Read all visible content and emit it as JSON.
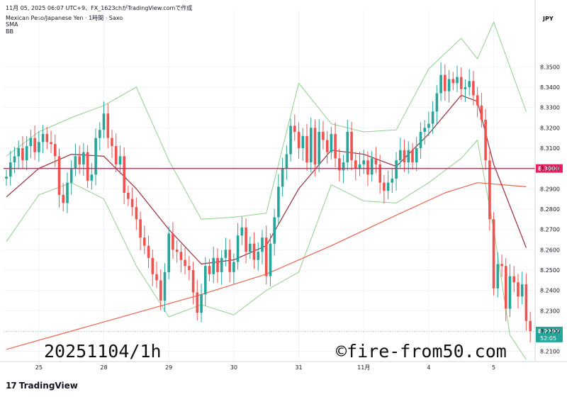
{
  "header": {
    "line1": "11月 05, 2025 06:07 UTC+9、FX_1623chがTradingView.comで作成",
    "line2": "Mexican Peso/Japanese Yen · 1時間 · Saxo",
    "line3": "SMA",
    "line4": "BB"
  },
  "watermark": {
    "left": "20251104/1h",
    "right": "©fire-from50.com"
  },
  "logo": {
    "mark": "17",
    "text": "TradingView"
  },
  "colors": {
    "up": "#26a69a",
    "down": "#ef5350",
    "sma_short": "#9c2b38",
    "sma_long": "#f0634a",
    "bb": "#8fd18a",
    "hline": "#e91e63",
    "grid": "#f0f3fa"
  },
  "chart_data": {
    "type": "candlestick",
    "currency": "JPY",
    "ylim": [
      8.205,
      8.378
    ],
    "yticks": [
      "8.2100",
      "8.2200",
      "8.2300",
      "8.2400",
      "8.2500",
      "8.2600",
      "8.2700",
      "8.2800",
      "8.2900",
      "8.3000",
      "8.3100",
      "8.3200",
      "8.3300",
      "8.3400",
      "8.3500"
    ],
    "xticks": [
      {
        "label": "25",
        "i": 8
      },
      {
        "label": "28",
        "i": 24
      },
      {
        "label": "29",
        "i": 40
      },
      {
        "label": "30",
        "i": 56
      },
      {
        "label": "31",
        "i": 72
      },
      {
        "label": "11月",
        "i": 88
      },
      {
        "label": "4",
        "i": 104
      },
      {
        "label": "5",
        "i": 120
      }
    ],
    "hline": {
      "value": 8.3,
      "label": "8.3000"
    },
    "last_price": {
      "value": 8.2197,
      "label": "8.2197",
      "countdown": "52:05"
    },
    "closes": [
      8.296,
      8.303,
      8.306,
      8.31,
      8.304,
      8.311,
      8.315,
      8.308,
      8.313,
      8.317,
      8.313,
      8.312,
      8.306,
      8.287,
      8.283,
      8.293,
      8.3,
      8.306,
      8.302,
      8.308,
      8.294,
      8.297,
      8.315,
      8.319,
      8.327,
      8.315,
      8.311,
      8.302,
      8.306,
      8.288,
      8.285,
      8.281,
      8.275,
      8.266,
      8.262,
      8.256,
      8.248,
      8.245,
      8.235,
      8.249,
      8.268,
      8.26,
      8.259,
      8.255,
      8.252,
      8.25,
      8.239,
      8.229,
      8.238,
      8.252,
      8.248,
      8.256,
      8.249,
      8.256,
      8.26,
      8.249,
      8.254,
      8.267,
      8.271,
      8.259,
      8.263,
      8.255,
      8.259,
      8.266,
      8.247,
      8.263,
      8.276,
      8.291,
      8.3,
      8.307,
      8.321,
      8.318,
      8.31,
      8.316,
      8.303,
      8.32,
      8.302,
      8.318,
      8.314,
      8.308,
      8.317,
      8.305,
      8.299,
      8.303,
      8.318,
      8.304,
      8.3,
      8.302,
      8.304,
      8.297,
      8.305,
      8.302,
      8.293,
      8.289,
      8.293,
      8.295,
      8.304,
      8.309,
      8.303,
      8.309,
      8.303,
      8.31,
      8.318,
      8.32,
      8.322,
      8.328,
      8.337,
      8.346,
      8.338,
      8.344,
      8.342,
      8.345,
      8.339,
      8.34,
      8.343,
      8.336,
      8.331,
      8.324,
      8.304,
      8.275,
      8.241,
      8.253,
      8.252,
      8.231,
      8.247,
      8.244,
      8.237,
      8.243,
      8.225,
      8.22
    ],
    "sma_short": [
      [
        0,
        8.286
      ],
      [
        8,
        8.3
      ],
      [
        16,
        8.307
      ],
      [
        24,
        8.306
      ],
      [
        32,
        8.29
      ],
      [
        40,
        8.27
      ],
      [
        48,
        8.253
      ],
      [
        56,
        8.255
      ],
      [
        64,
        8.262
      ],
      [
        72,
        8.29
      ],
      [
        80,
        8.309
      ],
      [
        88,
        8.307
      ],
      [
        96,
        8.301
      ],
      [
        104,
        8.317
      ],
      [
        112,
        8.336
      ],
      [
        116,
        8.333
      ],
      [
        120,
        8.302
      ],
      [
        128,
        8.261
      ]
    ],
    "sma_long": [
      [
        0,
        8.211
      ],
      [
        16,
        8.22
      ],
      [
        32,
        8.229
      ],
      [
        48,
        8.238
      ],
      [
        64,
        8.248
      ],
      [
        80,
        8.262
      ],
      [
        96,
        8.277
      ],
      [
        108,
        8.288
      ],
      [
        116,
        8.293
      ],
      [
        128,
        8.291
      ]
    ],
    "bb_upper": [
      [
        0,
        8.306
      ],
      [
        8,
        8.318
      ],
      [
        16,
        8.325
      ],
      [
        24,
        8.331
      ],
      [
        32,
        8.34
      ],
      [
        40,
        8.304
      ],
      [
        48,
        8.275
      ],
      [
        56,
        8.276
      ],
      [
        64,
        8.278
      ],
      [
        72,
        8.342
      ],
      [
        80,
        8.322
      ],
      [
        88,
        8.318
      ],
      [
        96,
        8.319
      ],
      [
        104,
        8.349
      ],
      [
        112,
        8.364
      ],
      [
        116,
        8.354
      ],
      [
        120,
        8.372
      ],
      [
        128,
        8.328
      ]
    ],
    "bb_lower": [
      [
        0,
        8.264
      ],
      [
        8,
        8.287
      ],
      [
        16,
        8.293
      ],
      [
        24,
        8.285
      ],
      [
        32,
        8.252
      ],
      [
        40,
        8.227
      ],
      [
        48,
        8.233
      ],
      [
        56,
        8.228
      ],
      [
        64,
        8.24
      ],
      [
        72,
        8.249
      ],
      [
        80,
        8.292
      ],
      [
        88,
        8.284
      ],
      [
        96,
        8.283
      ],
      [
        104,
        8.293
      ],
      [
        112,
        8.305
      ],
      [
        116,
        8.314
      ],
      [
        120,
        8.27
      ],
      [
        124,
        8.218
      ],
      [
        128,
        8.206
      ]
    ]
  }
}
